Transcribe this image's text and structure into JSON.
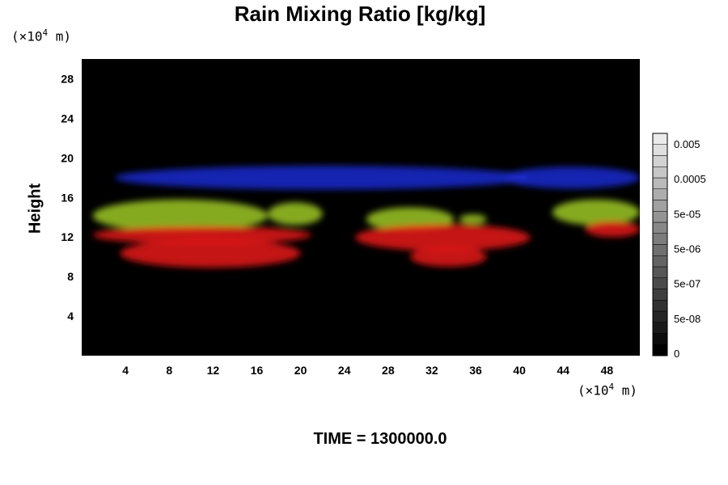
{
  "chart_data": {
    "type": "heatmap",
    "title": "Rain Mixing Ratio [kg/kg]",
    "ylabel": "Height",
    "xlabel": "",
    "x_unit": {
      "prefix": "(×10",
      "exp": "4",
      "suffix": " m)"
    },
    "y_unit": {
      "prefix": "(×10",
      "exp": "4",
      "suffix": " m)"
    },
    "footer": "TIME = 1300000.0",
    "xlim": [
      0,
      51
    ],
    "ylim": [
      0,
      30
    ],
    "x_ticks": [
      4,
      8,
      12,
      16,
      20,
      24,
      28,
      32,
      36,
      40,
      44,
      48
    ],
    "y_ticks": [
      4,
      8,
      12,
      16,
      20,
      24,
      28
    ],
    "background_color": "#000000",
    "colorbar": {
      "labels": [
        "0.005",
        "0.0005",
        "5e-05",
        "5e-06",
        "5e-07",
        "5e-08",
        "0"
      ],
      "n_levels": 20
    },
    "layers": [
      {
        "color": "#1a2bd0",
        "regions": [
          {
            "x": [
              3,
              41
            ],
            "y": [
              16.8,
              19.2
            ]
          },
          {
            "x": [
              38.5,
              51
            ],
            "y": [
              16.9,
              19.1
            ]
          }
        ]
      },
      {
        "color": "#9ec824",
        "regions": [
          {
            "x": [
              1,
              17
            ],
            "y": [
              12.5,
              15.8
            ]
          },
          {
            "x": [
              17,
              22
            ],
            "y": [
              13.2,
              15.5
            ]
          },
          {
            "x": [
              26,
              34
            ],
            "y": [
              12.6,
              15.0
            ]
          },
          {
            "x": [
              34.5,
              37
            ],
            "y": [
              13.3,
              14.3
            ]
          },
          {
            "x": [
              43,
              51
            ],
            "y": [
              13.2,
              15.8
            ]
          }
        ]
      },
      {
        "color": "#e81414",
        "regions": [
          {
            "x": [
              1,
              21
            ],
            "y": [
              11.3,
              13.1
            ]
          },
          {
            "x": [
              3.5,
              20
            ],
            "y": [
              8.9,
              11.8
            ]
          },
          {
            "x": [
              25,
              41
            ],
            "y": [
              10.6,
              13.3
            ]
          },
          {
            "x": [
              30,
              37
            ],
            "y": [
              9.0,
              11.0
            ]
          },
          {
            "x": [
              46,
              51
            ],
            "y": [
              12.0,
              13.6
            ]
          }
        ]
      }
    ]
  }
}
